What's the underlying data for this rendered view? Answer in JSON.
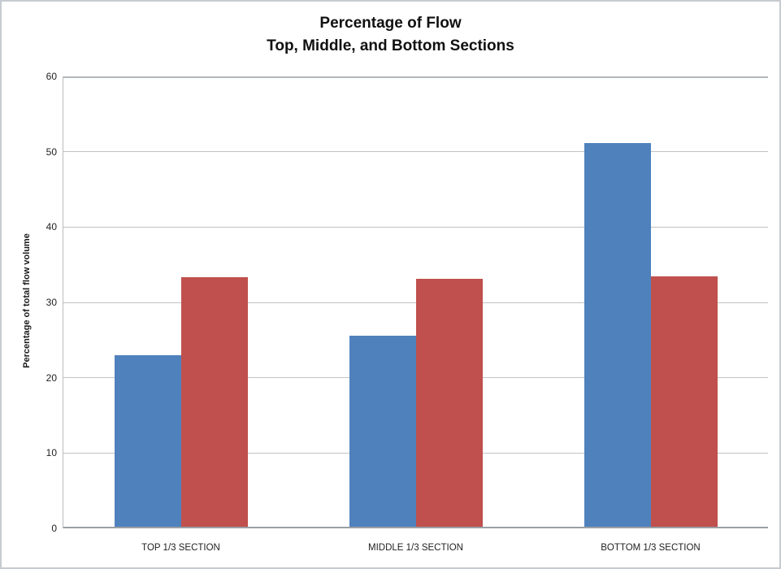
{
  "chart_data": {
    "type": "bar",
    "title": "Percentage of Flow",
    "subtitle": "Top, Middle, and Bottom Sections",
    "ylabel": "Percentage of total flow volume",
    "xlabel": "",
    "categories": [
      "TOP 1/3 SECTION",
      "MIDDLE 1/3 SECTION",
      "BOTTOM 1/3 SECTION"
    ],
    "series": [
      {
        "color": "#4F81BD",
        "values": [
          23.0,
          25.6,
          51.2
        ]
      },
      {
        "color": "#C0504D",
        "values": [
          33.4,
          33.1,
          33.5
        ]
      }
    ],
    "ylim": [
      0,
      60
    ],
    "yticks": [
      0,
      10,
      20,
      30,
      40,
      50,
      60
    ],
    "grid": true,
    "legend": false,
    "colors": {
      "gridline": "#c2c2c2",
      "axis_line": "#9aa0a4",
      "text": "#1f1f1f",
      "frame_border": "#c6ccd1"
    }
  }
}
